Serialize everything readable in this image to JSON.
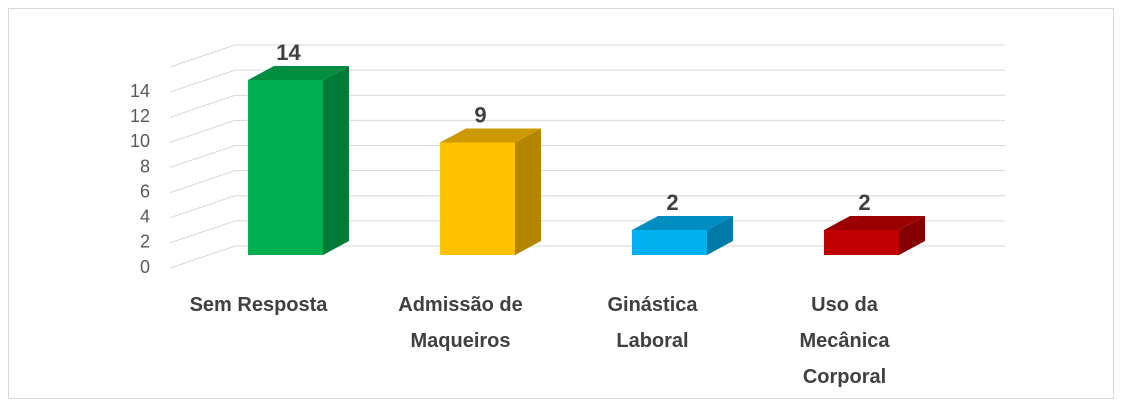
{
  "chart_data": {
    "type": "bar3d",
    "categories": [
      "Sem Resposta",
      "Admissão de Maqueiros",
      "Ginástica Laboral",
      "Uso da Mecânica Corporal"
    ],
    "values": [
      14,
      9,
      2,
      2
    ],
    "colors": [
      "#00b050",
      "#ffc000",
      "#00b0f0",
      "#c00000"
    ],
    "ylim": [
      0,
      16
    ],
    "yticks": [
      0,
      2,
      4,
      6,
      8,
      10,
      12,
      14
    ],
    "grid": true
  }
}
